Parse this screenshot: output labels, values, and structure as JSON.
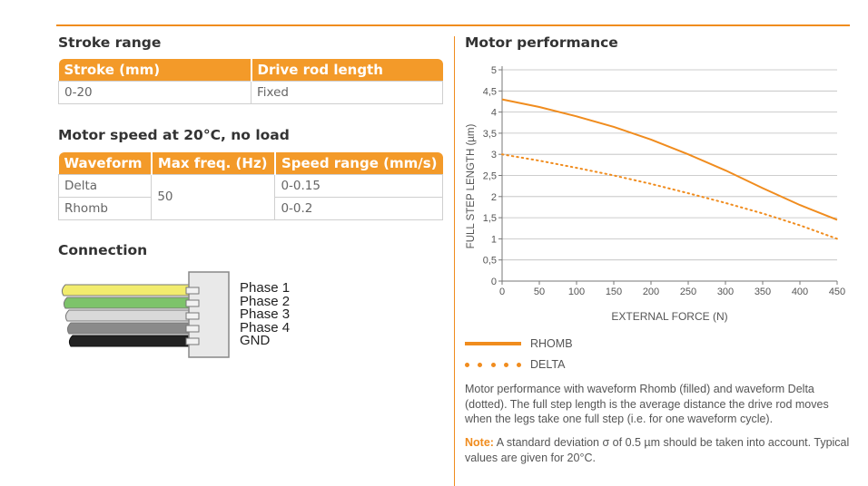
{
  "stroke_range": {
    "title": "Stroke range",
    "headers": [
      "Stroke (mm)",
      "Drive rod length"
    ],
    "rows": [
      [
        "0-20",
        "Fixed"
      ]
    ]
  },
  "motor_speed": {
    "title": "Motor speed at 20°C, no load",
    "headers": [
      "Waveform",
      "Max freq. (Hz)",
      "Speed range (mm/s)"
    ],
    "rows": [
      {
        "waveform": "Delta",
        "speed": "0-0.15"
      },
      {
        "waveform": "Rhomb",
        "speed": "0-0.2"
      }
    ],
    "max_freq": "50"
  },
  "connection": {
    "title": "Connection",
    "wires": [
      {
        "label": "Phase 1",
        "color": "#f2ec6e"
      },
      {
        "label": "Phase 2",
        "color": "#7dc36a"
      },
      {
        "label": "Phase 3",
        "color": "#d9d9d9"
      },
      {
        "label": "Phase 4",
        "color": "#8a8a8a"
      },
      {
        "label": "GND",
        "color": "#222222"
      }
    ]
  },
  "motor_performance": {
    "title": "Motor performance",
    "legend": {
      "rhomb": "RHOMB",
      "delta": "DELTA"
    },
    "description": "Motor performance with waveform Rhomb (filled) and waveform Delta (dotted). The full step length is the average distance the drive rod moves when the legs take one full step (i.e. for one waveform cycle).",
    "note_label": "Note:",
    "note_text": " A standard deviation σ of 0.5 µm should be taken into account. Typical values are given for 20°C."
  },
  "chart_data": {
    "type": "line",
    "xlabel": "EXTERNAL FORCE (N)",
    "ylabel": "FULL STEP LENGTH (µm)",
    "xlim": [
      0,
      450
    ],
    "ylim": [
      0,
      5
    ],
    "x_ticks": [
      "0",
      "50",
      "100",
      "150",
      "200",
      "250",
      "300",
      "350",
      "400",
      "450"
    ],
    "y_ticks": [
      "0",
      "0,5",
      "1",
      "1,5",
      "2",
      "2,5",
      "3",
      "3,5",
      "4",
      "4,5",
      "5"
    ],
    "grid": true,
    "series": [
      {
        "name": "RHOMB",
        "style": "solid",
        "x": [
          0,
          50,
          100,
          150,
          200,
          250,
          300,
          350,
          400,
          450
        ],
        "y": [
          4.3,
          4.12,
          3.9,
          3.65,
          3.35,
          3.0,
          2.62,
          2.2,
          1.8,
          1.45
        ]
      },
      {
        "name": "DELTA",
        "style": "dotted",
        "x": [
          0,
          50,
          100,
          150,
          200,
          250,
          300,
          350,
          400,
          450
        ],
        "y": [
          3.0,
          2.85,
          2.68,
          2.5,
          2.3,
          2.08,
          1.85,
          1.6,
          1.32,
          1.0
        ]
      }
    ],
    "colors": {
      "line": "#f08c1e",
      "grid": "#bdbdbd",
      "axis": "#777777"
    }
  }
}
